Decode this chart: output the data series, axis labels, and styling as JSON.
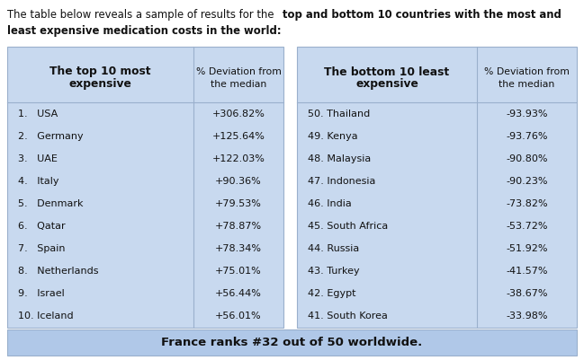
{
  "left_countries": [
    "1.   USA",
    "2.   Germany",
    "3.   UAE",
    "4.   Italy",
    "5.   Denmark",
    "6.   Qatar",
    "7.   Spain",
    "8.   Netherlands",
    "9.   Israel",
    "10. Iceland"
  ],
  "left_values": [
    "+306.82%",
    "+125.64%",
    "+122.03%",
    "+90.36%",
    "+79.53%",
    "+78.87%",
    "+78.34%",
    "+75.01%",
    "+56.44%",
    "+56.01%"
  ],
  "right_countries": [
    "50. Thailand",
    "49. Kenya",
    "48. Malaysia",
    "47. Indonesia",
    "46. India",
    "45. South Africa",
    "44. Russia",
    "43. Turkey",
    "42. Egypt",
    "41. South Korea"
  ],
  "right_values": [
    "-93.93%",
    "-93.76%",
    "-90.80%",
    "-90.23%",
    "-73.82%",
    "-53.72%",
    "-51.92%",
    "-41.57%",
    "-38.67%",
    "-33.98%"
  ],
  "footer_text": "France ranks #32 out of 50 worldwide.",
  "bg_table": "#c8d9ef",
  "bg_footer": "#b0c8e8",
  "border_color": "#9ab0cc",
  "text_dark": "#111111"
}
